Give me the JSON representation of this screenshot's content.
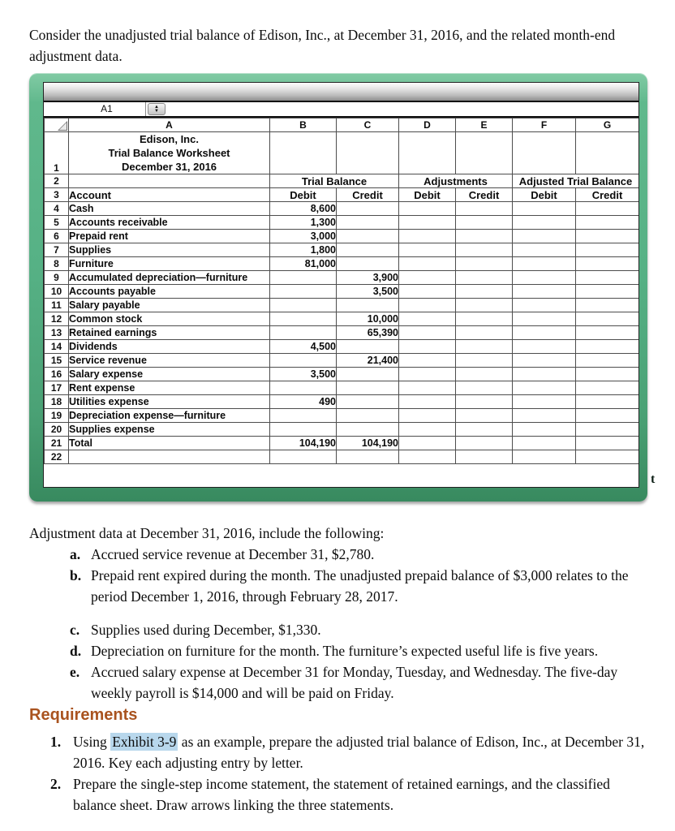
{
  "intro": "Consider the unadjusted trial balance of Edison, Inc., at December 31, 2016, and the related month-end adjustment data.",
  "colors": {
    "frame_green": "#56b185",
    "requirements_heading": "#a9531f",
    "exhibit_highlight": "#b8d7ec"
  },
  "spreadsheet": {
    "name_box": "A1",
    "columns": [
      "A",
      "B",
      "C",
      "D",
      "E",
      "F",
      "G"
    ],
    "row_numbers": {
      "title": "1",
      "groups": "2",
      "header": "3"
    },
    "title_lines": [
      "Edison, Inc.",
      "Trial Balance Worksheet",
      "December 31, 2016"
    ],
    "group_headers": [
      "Trial Balance",
      "Adjustments",
      "Adjusted Trial Balance"
    ],
    "account_header": "Account",
    "debit_label": "Debit",
    "credit_label": "Credit",
    "rows": [
      {
        "num": "4",
        "account": "Cash",
        "b": "8,600",
        "c": ""
      },
      {
        "num": "5",
        "account": "Accounts receivable",
        "b": "1,300",
        "c": ""
      },
      {
        "num": "6",
        "account": "Prepaid rent",
        "b": "3,000",
        "c": ""
      },
      {
        "num": "7",
        "account": "Supplies",
        "b": "1,800",
        "c": ""
      },
      {
        "num": "8",
        "account": "Furniture",
        "b": "81,000",
        "c": ""
      },
      {
        "num": "9",
        "account": "Accumulated depreciation—furniture",
        "b": "",
        "c": "3,900"
      },
      {
        "num": "10",
        "account": "Accounts payable",
        "b": "",
        "c": "3,500"
      },
      {
        "num": "11",
        "account": "Salary payable",
        "b": "",
        "c": ""
      },
      {
        "num": "12",
        "account": "Common stock",
        "b": "",
        "c": "10,000"
      },
      {
        "num": "13",
        "account": "Retained earnings",
        "b": "",
        "c": "65,390"
      },
      {
        "num": "14",
        "account": "Dividends",
        "b": "4,500",
        "c": ""
      },
      {
        "num": "15",
        "account": "Service revenue",
        "b": "",
        "c": "21,400"
      },
      {
        "num": "16",
        "account": "Salary expense",
        "b": "3,500",
        "c": ""
      },
      {
        "num": "17",
        "account": "Rent expense",
        "b": "",
        "c": ""
      },
      {
        "num": "18",
        "account": "Utilities expense",
        "b": "490",
        "c": ""
      },
      {
        "num": "19",
        "account": "Depreciation expense—furniture",
        "b": "",
        "c": ""
      },
      {
        "num": "20",
        "account": "Supplies expense",
        "b": "",
        "c": ""
      },
      {
        "num": "21",
        "account": "Total",
        "b": "104,190",
        "c": "104,190",
        "total": true
      },
      {
        "num": "22",
        "account": "",
        "b": "",
        "c": ""
      }
    ]
  },
  "stray_text": "t",
  "adjustments": {
    "intro": "Adjustment data at December 31, 2016, include the following:",
    "items": [
      {
        "letter": "a.",
        "text": "Accrued service revenue at December 31, $2,780."
      },
      {
        "letter": "b.",
        "text": "Prepaid rent expired during the month. The unadjusted prepaid balance of $3,000 relates to the period December 1, 2016, through February 28, 2017."
      },
      {
        "letter": "c.",
        "text": "Supplies used during December, $1,330.",
        "gap_before": true
      },
      {
        "letter": "d.",
        "text": "Depreciation on furniture for the month. The furniture’s expected useful life is five years."
      },
      {
        "letter": "e.",
        "text": "Accrued salary expense at December 31 for Monday, Tuesday, and Wednesday. The five-day weekly payroll is $14,000 and will be paid on Friday."
      }
    ]
  },
  "requirements": {
    "heading": "Requirements",
    "items": [
      {
        "num": "1.",
        "pre": "Using ",
        "highlight": "Exhibit 3-9",
        "post": " as an example, prepare the adjusted trial balance of Edison, Inc., at December 31, 2016. Key each adjusting entry by letter."
      },
      {
        "num": "2.",
        "text": "Prepare the single-step income statement, the statement of retained earnings, and the classified balance sheet. Draw arrows linking the three statements."
      }
    ]
  }
}
